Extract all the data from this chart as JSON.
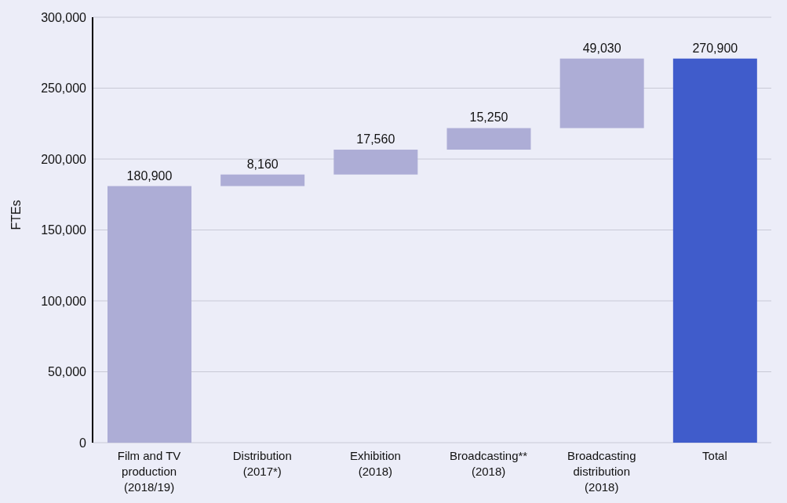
{
  "chart_data": {
    "type": "bar",
    "ylabel": "FTEs",
    "categories": [
      "Film and TV production (2018/19)",
      "Distribution (2017*)",
      "Exhibition (2018)",
      "Broadcasting** (2018)",
      "Broadcasting distribution (2018)",
      "Total"
    ],
    "values": [
      180900,
      8160,
      17560,
      15250,
      49030,
      270900
    ],
    "base": [
      0,
      180900,
      189060,
      206620,
      221870,
      0
    ],
    "colors": [
      "#adadd6",
      "#adadd6",
      "#adadd6",
      "#adadd6",
      "#adadd6",
      "#405ccb"
    ],
    "ylim": [
      0,
      300000
    ],
    "yticks": [
      {
        "value": 0,
        "label": "0"
      },
      {
        "value": 50000,
        "label": "50,000"
      },
      {
        "value": 100000,
        "label": "100,000"
      },
      {
        "value": 150000,
        "label": "150,000"
      },
      {
        "value": 200000,
        "label": "200,000"
      },
      {
        "value": 250000,
        "label": "250,000"
      },
      {
        "value": 300000,
        "label": "300,000"
      }
    ],
    "value_labels": [
      "180,900",
      "8,160",
      "17,560",
      "15,250",
      "49,030",
      "270,900"
    ],
    "grid": "y",
    "legend": false
  }
}
